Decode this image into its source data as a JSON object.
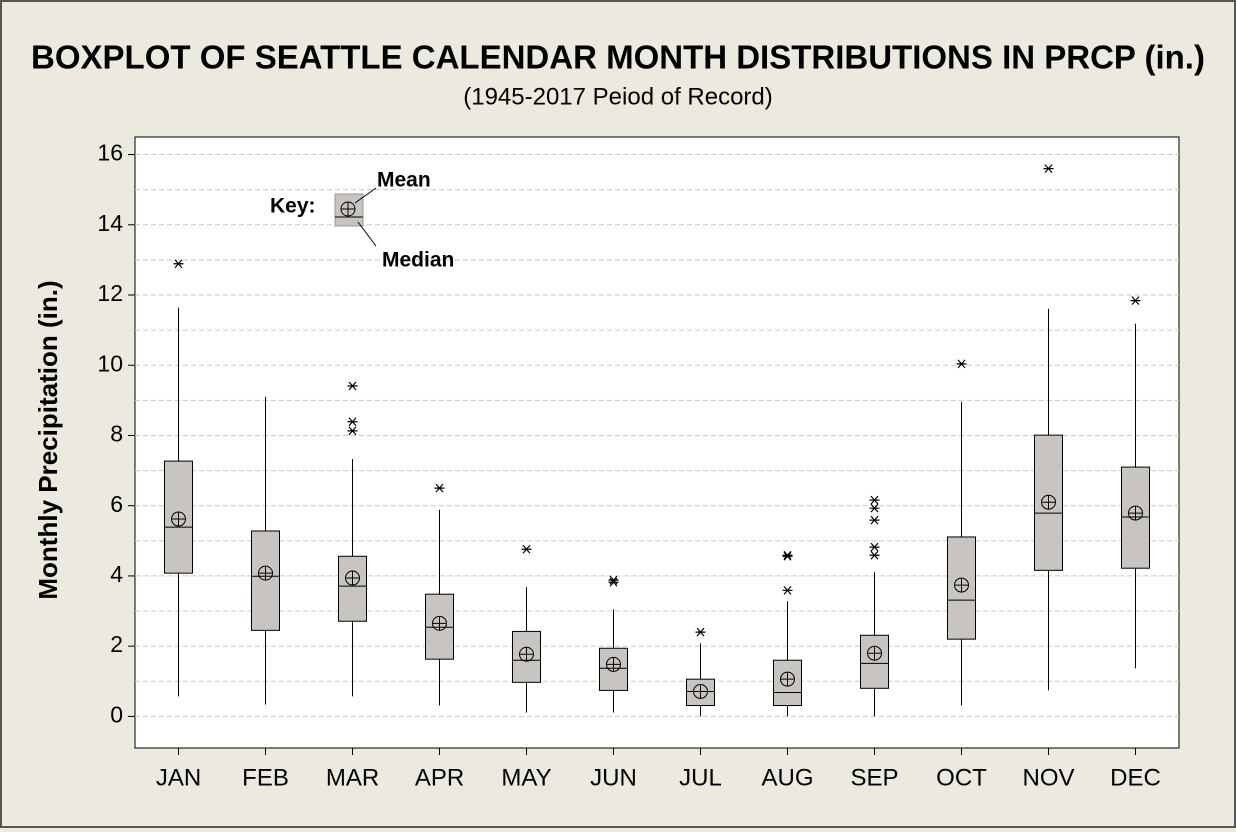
{
  "chart_data": {
    "type": "boxplot",
    "title": "BOXPLOT OF SEATTLE CALENDAR MONTH DISTRIBUTIONS IN PRCP (in.)",
    "subtitle": "(1945-2017 Peiod of Record)",
    "y_label": "Monthly Precipitation (in.)",
    "key": {
      "label": "Key:",
      "mean": "Mean",
      "median": "Median"
    },
    "categories": [
      "JAN",
      "FEB",
      "MAR",
      "APR",
      "MAY",
      "JUN",
      "JUL",
      "AUG",
      "SEP",
      "OCT",
      "NOV",
      "DEC"
    ],
    "boxes": [
      {
        "whisker_low": 0.57,
        "q1": 4.08,
        "median": 5.39,
        "q3": 7.27,
        "whisker_high": 11.64,
        "mean": 5.62,
        "outliers": [
          12.89
        ]
      },
      {
        "whisker_low": 0.34,
        "q1": 2.45,
        "median": 3.99,
        "q3": 5.28,
        "whisker_high": 9.1,
        "mean": 4.08,
        "outliers": []
      },
      {
        "whisker_low": 0.57,
        "q1": 2.71,
        "median": 3.71,
        "q3": 4.56,
        "whisker_high": 7.33,
        "mean": 3.94,
        "outliers": [
          9.41,
          8.39,
          8.13
        ]
      },
      {
        "whisker_low": 0.31,
        "q1": 1.63,
        "median": 2.54,
        "q3": 3.48,
        "whisker_high": 5.88,
        "mean": 2.65,
        "outliers": [
          6.5
        ]
      },
      {
        "whisker_low": 0.11,
        "q1": 0.97,
        "median": 1.6,
        "q3": 2.42,
        "whisker_high": 3.68,
        "mean": 1.77,
        "outliers": [
          4.76
        ]
      },
      {
        "whisker_low": 0.11,
        "q1": 0.74,
        "median": 1.37,
        "q3": 1.94,
        "whisker_high": 3.05,
        "mean": 1.48,
        "outliers": [
          3.88,
          3.82
        ]
      },
      {
        "whisker_low": 0,
        "q1": 0.31,
        "median": 0.71,
        "q3": 1.06,
        "whisker_high": 2.08,
        "mean": 0.71,
        "outliers": [
          2.4
        ]
      },
      {
        "whisker_low": 0,
        "q1": 0.31,
        "median": 0.68,
        "q3": 1.6,
        "whisker_high": 3.28,
        "mean": 1.06,
        "outliers": [
          3.59,
          4.59,
          4.56
        ]
      },
      {
        "whisker_low": 0,
        "q1": 0.8,
        "median": 1.51,
        "q3": 2.31,
        "whisker_high": 4.11,
        "mean": 1.8,
        "outliers": [
          4.82,
          4.59,
          5.59,
          5.93,
          6.16
        ]
      },
      {
        "whisker_low": 0.31,
        "q1": 2.2,
        "median": 3.31,
        "q3": 5.11,
        "whisker_high": 8.96,
        "mean": 3.74,
        "outliers": [
          10.04
        ]
      },
      {
        "whisker_low": 0.74,
        "q1": 4.16,
        "median": 5.79,
        "q3": 8.01,
        "whisker_high": 11.61,
        "mean": 6.1,
        "outliers": [
          15.6
        ]
      },
      {
        "whisker_low": 1.37,
        "q1": 4.22,
        "median": 5.68,
        "q3": 7.1,
        "whisker_high": 11.18,
        "mean": 5.79,
        "outliers": [
          11.84
        ]
      }
    ],
    "color": "#c8c4c0",
    "ylim": [
      -0.9,
      16.5
    ],
    "yticks": [
      0,
      2,
      4,
      6,
      8,
      10,
      12,
      14,
      16
    ],
    "grid": true,
    "grid_lines": [
      0,
      1,
      2,
      3,
      4,
      5,
      6,
      7,
      8,
      9,
      10,
      11,
      12,
      13,
      14,
      15,
      16
    ]
  }
}
